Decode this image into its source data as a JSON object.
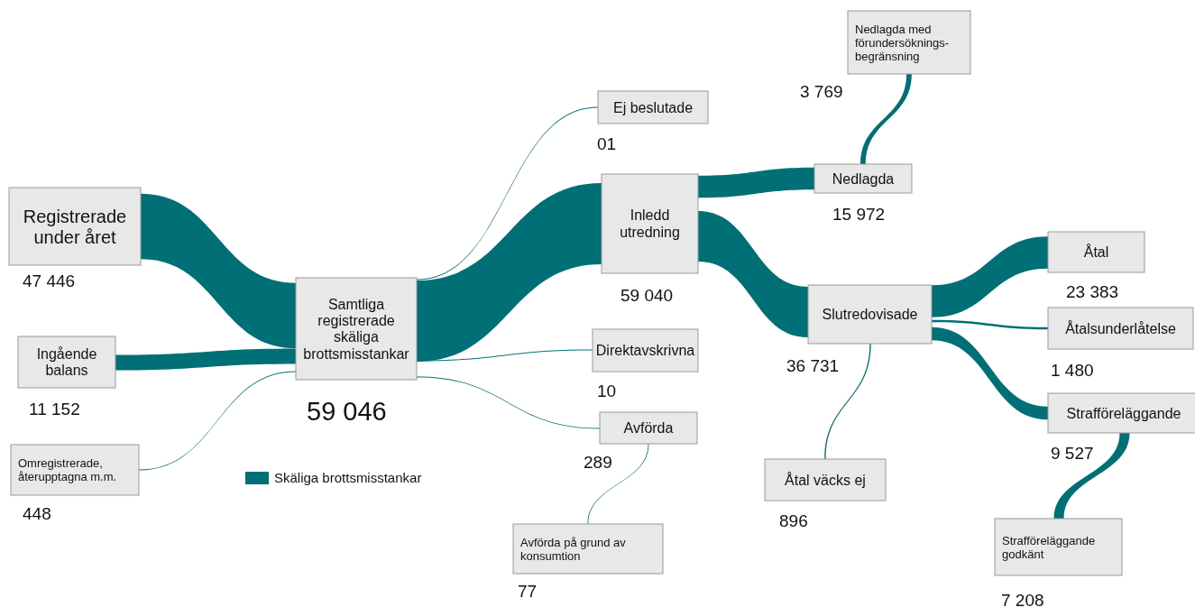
{
  "chart_data": {
    "type": "other",
    "categories": [
      "Registrerade under året",
      "Ingående balans",
      "Omregistrerade, återupptagna m.m.",
      "Samtliga registrerade skäliga brottsmisstankar",
      "Ej beslutade",
      "Inledd utredning",
      "Direktavskrivna",
      "Avförda",
      "Avförda på grund av konsumtion",
      "Nedlagda",
      "Nedlagda med förundersöknings-begränsning",
      "Slutredovisade",
      "Åtal väcks ej",
      "Åtal",
      "Åtalsunderlåtelse",
      "Strafföreläggande",
      "Strafföreläggande godkänt"
    ],
    "series": [
      {
        "name": "Skäliga brottsmisstankar",
        "color": "#007076",
        "values": [
          47446,
          11152,
          448,
          59046,
          1,
          59040,
          10,
          289,
          77,
          15972,
          3769,
          36731,
          896,
          23383,
          1480,
          9527,
          7208
        ],
        "value_labels": [
          "47 446",
          "11 152",
          "448",
          "59 046",
          "01",
          "59 040",
          "10",
          "289",
          "77",
          "15 972",
          "3 769",
          "36 731",
          "896",
          "23 383",
          "1 480",
          "9 527",
          "7 208"
        ]
      }
    ],
    "legend": "bottom left"
  }
}
